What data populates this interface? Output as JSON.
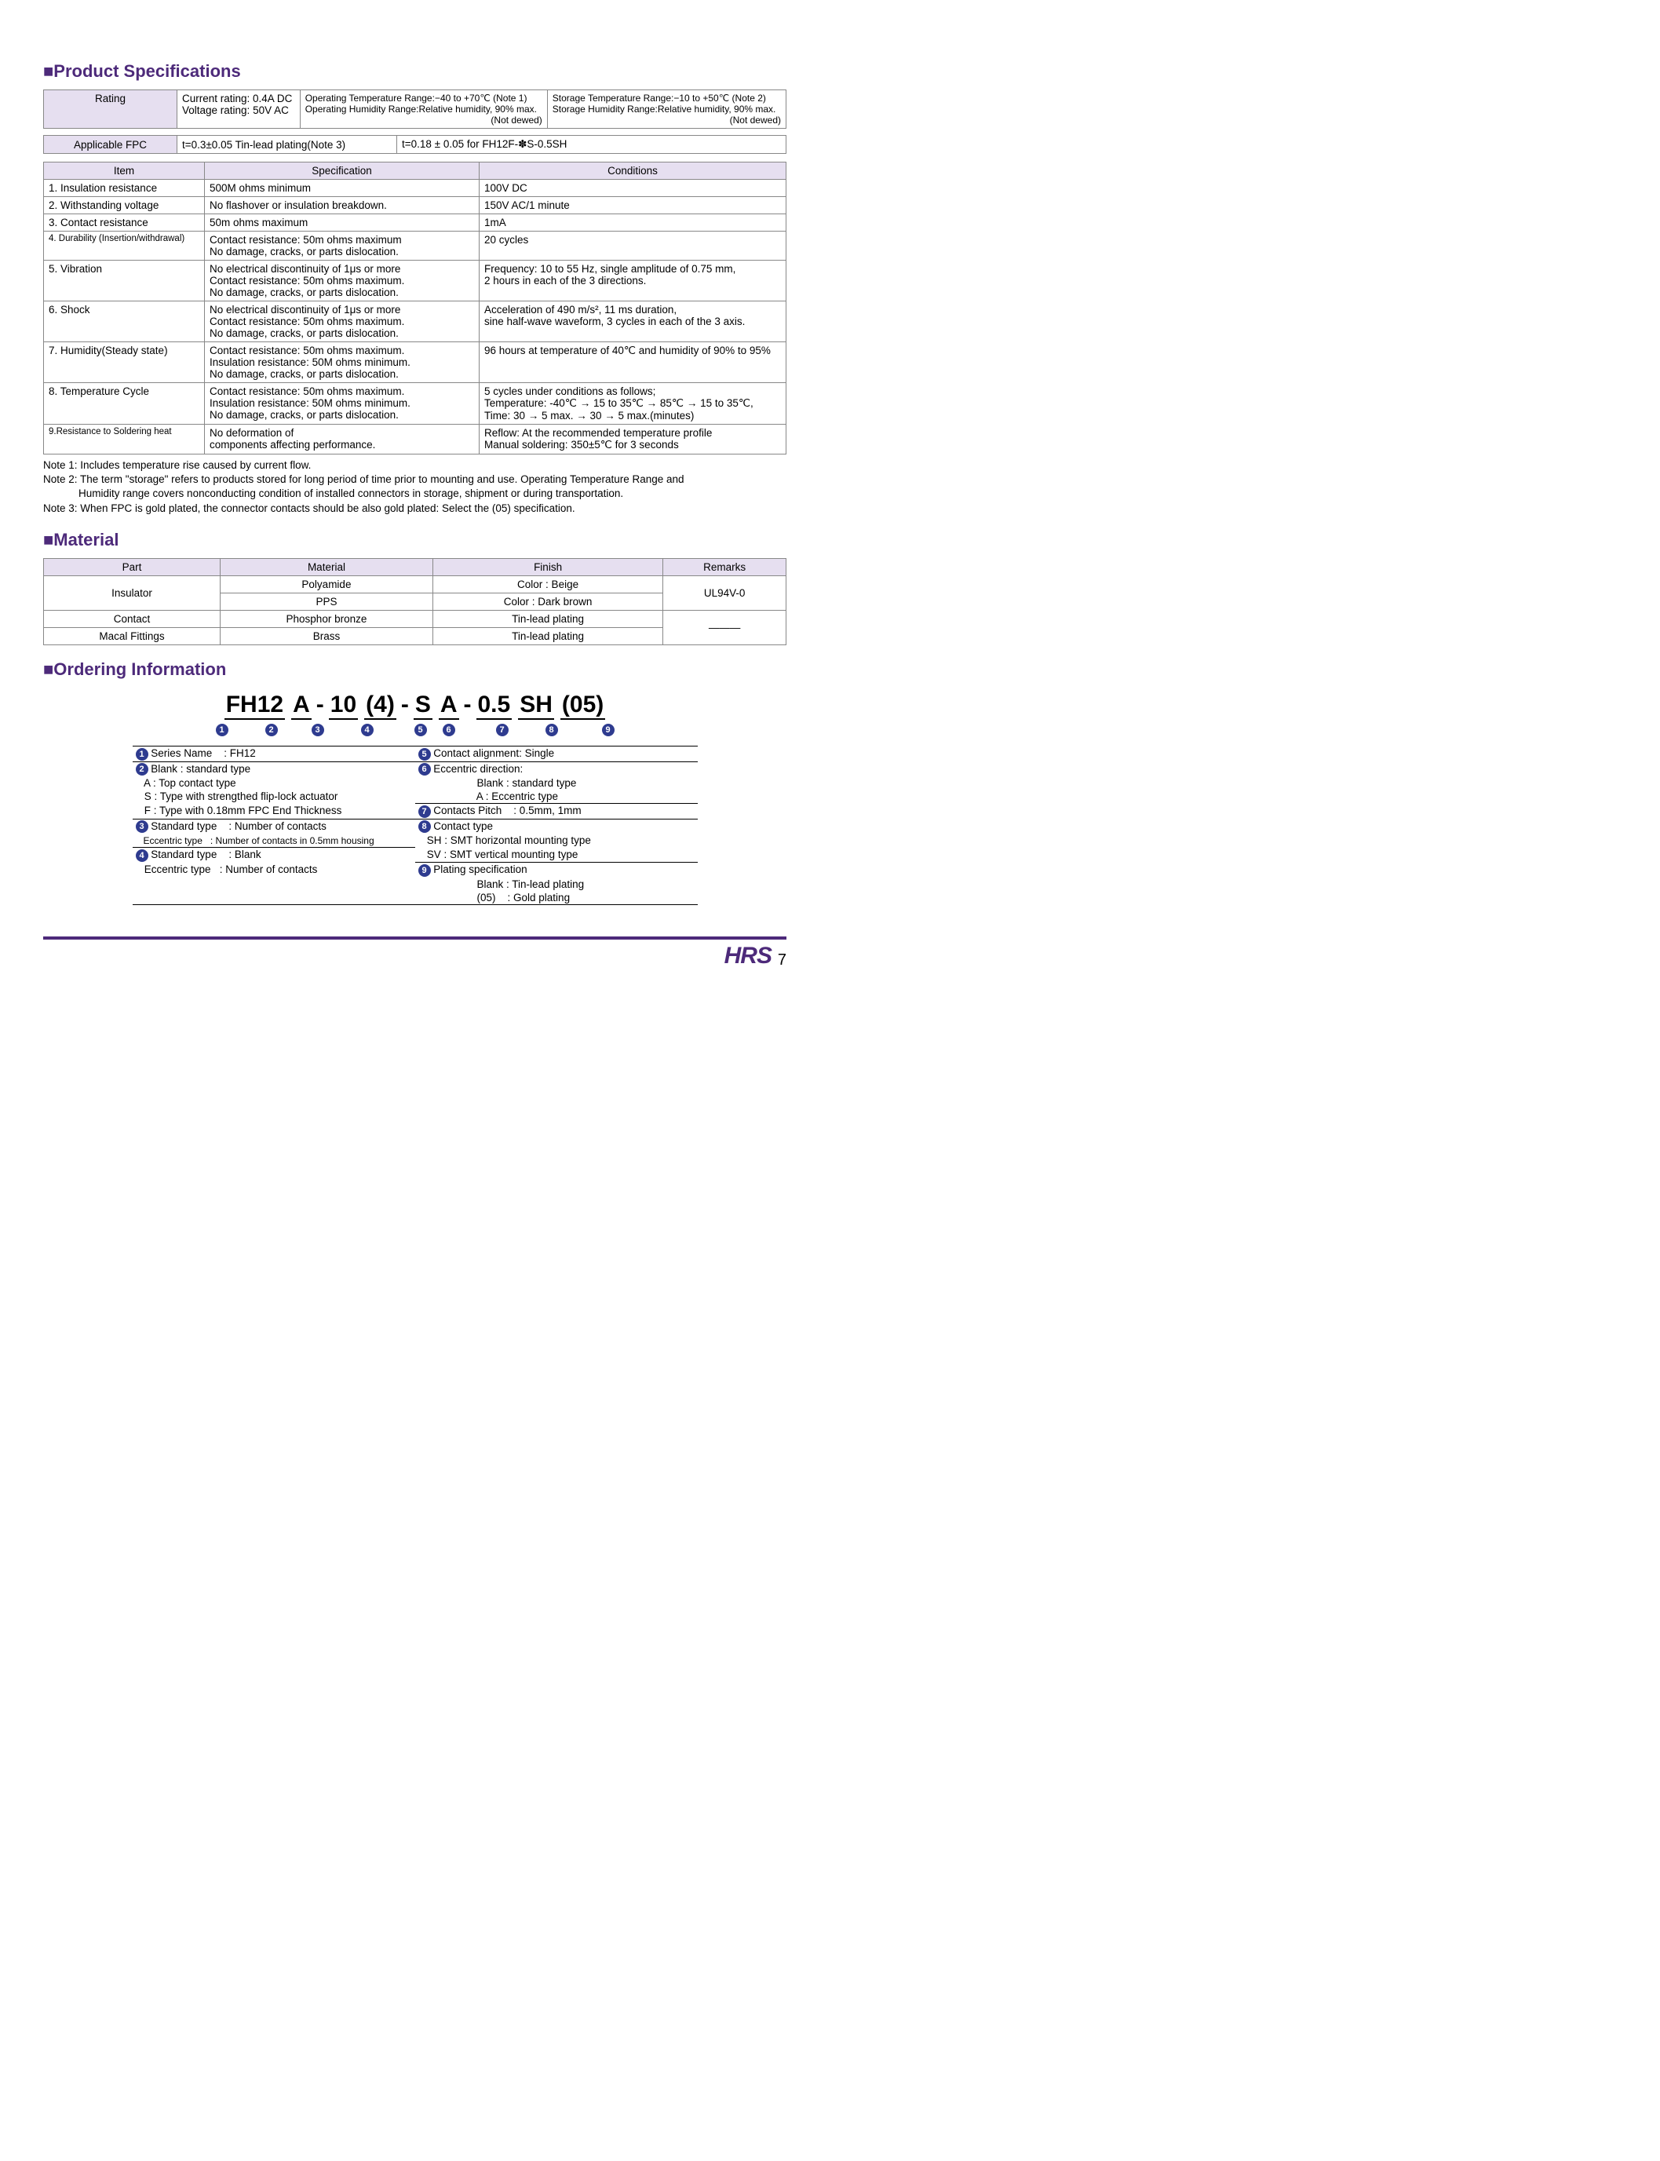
{
  "colors": {
    "accent": "#4d2a7a",
    "header_bg": "#e6dff0",
    "border": "#888888",
    "circ_bg": "#2e3b8f"
  },
  "headings": {
    "spec": "Product Specifications",
    "material": "Material",
    "ordering": "Ordering Information"
  },
  "rating": {
    "label": "Rating",
    "col1": [
      "Current rating: 0.4A DC",
      "Voltage rating: 50V AC"
    ],
    "col2": [
      "Operating Temperature Range:−40 to +70℃ (Note 1)",
      "Operating Humidity Range:Relative humidity, 90% max.",
      "(Not dewed)"
    ],
    "col3": [
      "Storage Temperature Range:−10 to +50℃ (Note 2)",
      "Storage Humidity Range:Relative humidity, 90% max.",
      "(Not dewed)"
    ]
  },
  "fpc": {
    "label": "Applicable FPC",
    "c1": "t=0.3±0.05  Tin-lead plating(Note 3)",
    "c2": "t=0.18 ± 0.05 for FH12F-✽S-0.5SH"
  },
  "specTable": {
    "headers": [
      "Item",
      "Specification",
      "Conditions"
    ],
    "rows": [
      {
        "item": "1. Insulation resistance",
        "spec": "500M ohms minimum",
        "cond": "100V DC"
      },
      {
        "item": "2. Withstanding voltage",
        "spec": "No flashover or insulation breakdown.",
        "cond": "150V AC/1 minute"
      },
      {
        "item": "3. Contact resistance",
        "spec": "50m ohms maximum",
        "cond": "1mA"
      },
      {
        "item": "4. Durability (Insertion/withdrawal)",
        "item_small": true,
        "spec": "Contact resistance: 50m ohms maximum\nNo damage, cracks, or parts dislocation.",
        "cond": "20 cycles"
      },
      {
        "item": "5. Vibration",
        "spec": "No electrical discontinuity of 1μs or more\nContact resistance: 50m ohms maximum.\nNo damage, cracks, or parts dislocation.",
        "cond": "Frequency: 10 to 55 Hz, single amplitude of 0.75 mm,\n2 hours in each of the 3 directions."
      },
      {
        "item": "6. Shock",
        "spec": "No electrical discontinuity of 1μs or more\nContact resistance: 50m ohms maximum.\nNo damage, cracks, or parts dislocation.",
        "cond": "Acceleration of 490 m/s², 11 ms duration,\nsine half-wave waveform, 3 cycles in each of the 3 axis."
      },
      {
        "item": "7. Humidity(Steady state)",
        "spec": "Contact resistance: 50m ohms maximum.\nInsulation resistance: 50M ohms minimum.\nNo damage, cracks, or parts dislocation.",
        "cond": "96 hours at temperature of 40℃ and humidity of 90% to 95%"
      },
      {
        "item": "8. Temperature Cycle",
        "spec": "Contact resistance: 50m ohms maximum.\nInsulation resistance: 50M ohms minimum.\nNo damage, cracks, or parts dislocation.",
        "cond": "5 cycles under conditions as follows;\nTemperature: -40℃ → 15 to 35℃ → 85℃ → 15 to 35℃,\nTime: 30 → 5 max. → 30 → 5 max.(minutes)"
      },
      {
        "item": "9.Resistance to Soldering heat",
        "item_small": true,
        "spec": "No deformation of\ncomponents affecting performance.",
        "cond": "Reflow: At the recommended temperature profile\nManual soldering: 350±5℃ for 3 seconds"
      }
    ]
  },
  "notes": [
    "Note 1: Includes temperature rise caused by current flow.",
    "Note 2: The term \"storage\" refers to products stored for long period of time prior to mounting and use. Operating Temperature Range and",
    "            Humidity range covers nonconducting condition of installed connectors in storage, shipment or during transportation.",
    "Note 3: When FPC is gold plated, the connector contacts should be also gold plated: Select the (05) specification."
  ],
  "material": {
    "headers": [
      "Part",
      "Material",
      "Finish",
      "Remarks"
    ],
    "rows": [
      [
        "Insulator",
        "Polyamide",
        "Color : Beige",
        "UL94V-0"
      ],
      [
        "",
        "PPS",
        "Color : Dark brown",
        ""
      ],
      [
        "Contact",
        "Phosphor bronze",
        "Tin-lead plating",
        "———"
      ],
      [
        "Macal Fittings",
        "Brass",
        "Tin-lead plating",
        ""
      ]
    ]
  },
  "ordering": {
    "segments": [
      "FH12",
      "A",
      "-",
      "10",
      "(4)",
      "-",
      "S",
      "A",
      "-",
      "0.5",
      "SH",
      "(05)"
    ],
    "seg_underline": [
      true,
      true,
      false,
      true,
      true,
      false,
      true,
      true,
      false,
      true,
      true,
      true
    ],
    "seg_num": [
      "1",
      "2",
      "",
      "3",
      "4",
      "",
      "5",
      "6",
      "",
      "7",
      "8",
      "9"
    ],
    "left": [
      {
        "n": "1",
        "t": "Series Name    : FH12"
      },
      {
        "n": "2",
        "t": "Blank : standard type"
      },
      {
        "n": "",
        "t": "   A : Top contact type"
      },
      {
        "n": "",
        "t": "   S : Type with strengthed flip-lock actuator"
      },
      {
        "n": "",
        "t": "   F : Type with 0.18mm FPC End Thickness"
      },
      {
        "n": "3",
        "t": "Standard type    : Number of contacts"
      },
      {
        "n": "",
        "t": "   Eccentric type   : Number of contacts in 0.5mm housing",
        "small": true
      },
      {
        "n": "4",
        "t": "Standard type    : Blank"
      },
      {
        "n": "",
        "t": "   Eccentric type   : Number of contacts"
      }
    ],
    "right": [
      {
        "n": "5",
        "t": "Contact alignment: Single"
      },
      {
        "n": "6",
        "t": "Eccentric direction:"
      },
      {
        "n": "",
        "t": "                    Blank : standard type"
      },
      {
        "n": "",
        "t": "                    A : Eccentric type"
      },
      {
        "n": "7",
        "t": "Contacts Pitch    : 0.5mm, 1mm"
      },
      {
        "n": "8",
        "t": "Contact type"
      },
      {
        "n": "",
        "t": "   SH : SMT horizontal mounting type"
      },
      {
        "n": "",
        "t": "   SV : SMT vertical mounting type"
      },
      {
        "n": "9",
        "t": "Plating specification"
      },
      {
        "n": "",
        "t": "                    Blank : Tin-lead plating"
      },
      {
        "n": "",
        "t": "                    (05)    : Gold plating"
      }
    ]
  },
  "footer": {
    "logo": "HRS",
    "page": "7"
  }
}
